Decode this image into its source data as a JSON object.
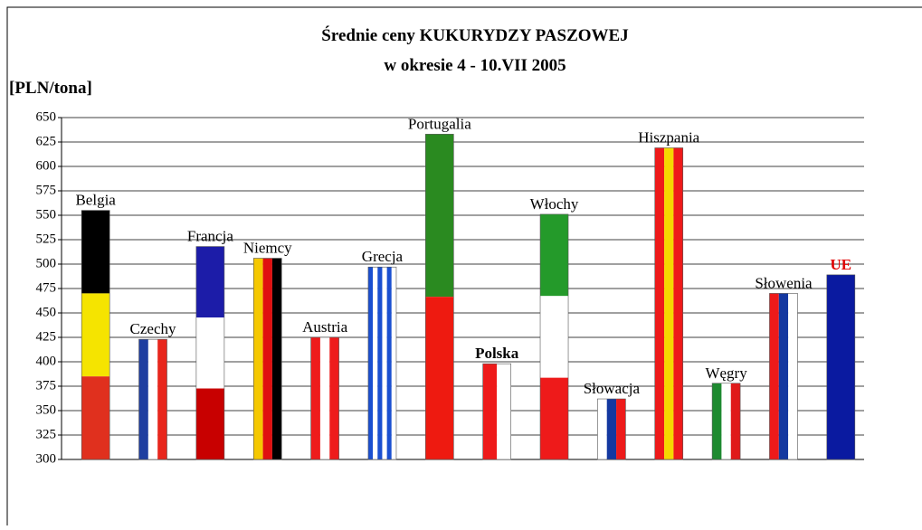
{
  "chart_data": {
    "type": "bar",
    "title": "Średnie ceny KUKURYDZY PASZOWEJ",
    "subtitle": "w okresie 4 - 10.VII 2005",
    "y_label": "[PLN/tona]",
    "categories": [
      "Belgia",
      "Czechy",
      "Francja",
      "Niemcy",
      "Austria",
      "Grecja",
      "Portugalia",
      "Polska",
      "Włochy",
      "Słowacja",
      "Hiszpania",
      "Węgry",
      "Słowenia",
      "UE"
    ],
    "values": [
      555,
      423,
      518,
      506,
      425,
      497,
      633,
      398,
      551,
      362,
      619,
      378,
      470,
      489
    ],
    "colors": [
      [
        "#000000",
        "#f5e400",
        "#e0301e"
      ],
      [
        "#1e3ea0",
        "#ffffff",
        "#e8261c"
      ],
      [
        "#1c1ca8",
        "#ffffff",
        "#c80000"
      ],
      [
        "#f5c800",
        "#e01010",
        "#000000"
      ],
      [
        "#ee1c1c",
        "#ffffff",
        "#ee1c1c"
      ],
      [
        "#1a4fd0",
        "#ffffff",
        "#1a4fd0",
        "#ffffff",
        "#1a4fd0",
        "#ffffff"
      ],
      [
        "#2a8a20",
        "#ee1a10"
      ],
      [
        "#ee1a1a",
        "#ffffff"
      ],
      [
        "#249a2a",
        "#ffffff",
        "#ee1a1a"
      ],
      [
        "#ffffff",
        "#1438a0",
        "#ee1a1a"
      ],
      [
        "#ee1a1a",
        "#f5d800",
        "#ee1a1a"
      ],
      [
        "#1e8a30",
        "#ffffff",
        "#e01a1a"
      ],
      [
        "#ee1a1a",
        "#1438a0",
        "#ffffff"
      ],
      [
        "#0a1aa0"
      ]
    ],
    "stripes": [
      "horizontal",
      "vertical",
      "horizontal",
      "vertical",
      "vertical",
      "vertical",
      "horizontal",
      "vertical",
      "horizontal",
      "vertical",
      "vertical",
      "vertical",
      "vertical",
      "horizontal"
    ],
    "ylim": [
      300,
      650
    ],
    "yticks": [
      300,
      325,
      350,
      375,
      400,
      425,
      450,
      475,
      500,
      525,
      550,
      575,
      600,
      625,
      650
    ],
    "grid": true
  }
}
